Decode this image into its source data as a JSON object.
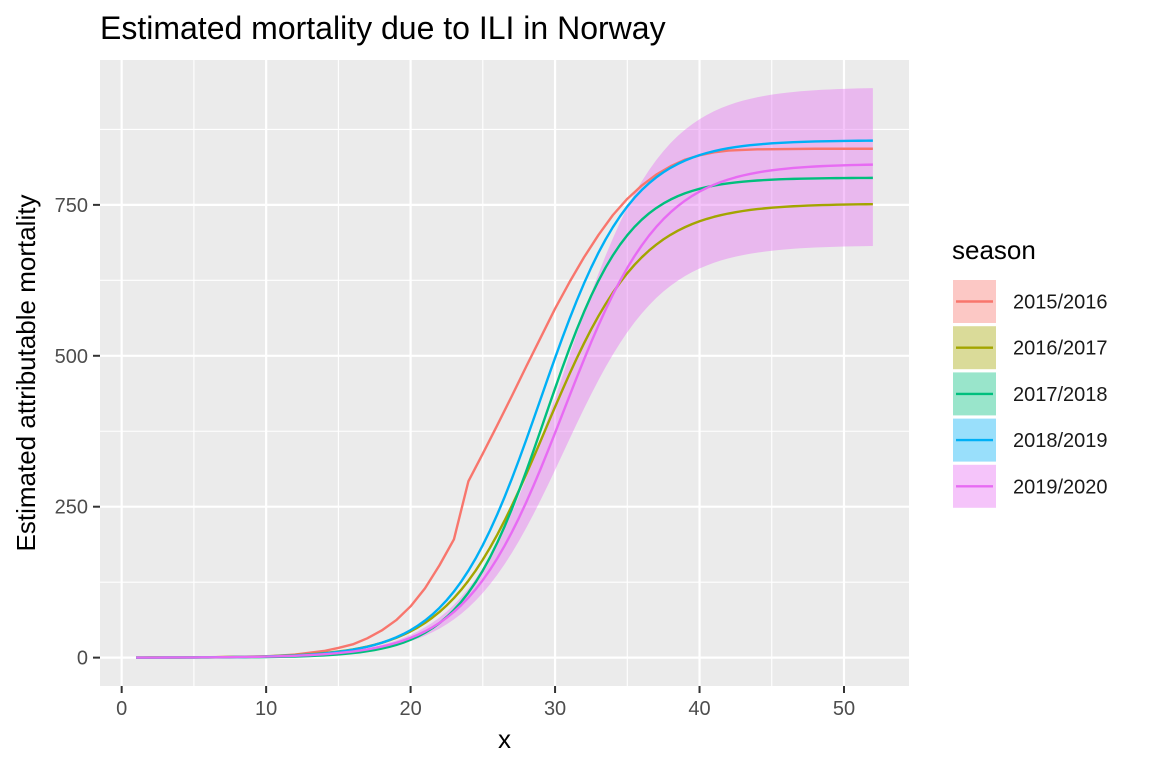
{
  "chart_data": {
    "type": "line",
    "title": "Estimated mortality due to ILI in Norway",
    "xlabel": "x",
    "ylabel": "Estimated attributable mortality",
    "xlim": [
      -1.5,
      54.5
    ],
    "ylim": [
      -47,
      990
    ],
    "x_ticks": [
      0,
      10,
      20,
      30,
      40,
      50
    ],
    "y_ticks": [
      0,
      250,
      500,
      750
    ],
    "grid": true,
    "legend": {
      "title": "season",
      "position": "right"
    },
    "series": [
      {
        "name": "2015/2016",
        "color": "#F8766D",
        "kind": "piecewise",
        "points": [
          [
            1,
            0
          ],
          [
            5,
            0.3
          ],
          [
            10,
            2
          ],
          [
            12,
            5
          ],
          [
            14,
            11
          ],
          [
            15,
            16
          ],
          [
            16,
            22
          ],
          [
            17,
            32
          ],
          [
            18,
            45
          ],
          [
            19,
            62
          ],
          [
            20,
            85
          ],
          [
            21,
            115
          ],
          [
            22,
            153
          ],
          [
            23,
            196
          ],
          [
            24,
            292
          ],
          [
            25,
            338
          ],
          [
            26,
            385
          ],
          [
            27,
            433
          ],
          [
            28,
            482
          ],
          [
            29,
            530
          ],
          [
            30,
            578
          ],
          [
            31,
            622
          ],
          [
            32,
            663
          ],
          [
            33,
            700
          ],
          [
            34,
            733
          ],
          [
            35,
            760
          ],
          [
            36,
            782
          ],
          [
            37,
            800
          ],
          [
            38,
            814
          ],
          [
            39,
            825
          ],
          [
            40,
            832
          ],
          [
            41,
            837
          ],
          [
            42,
            840
          ],
          [
            44,
            842
          ],
          [
            48,
            843
          ],
          [
            52,
            843
          ]
        ]
      },
      {
        "name": "2016/2017",
        "color": "#A3A500",
        "kind": "logistic",
        "L": 752,
        "x0": 29.3,
        "k": 0.3
      },
      {
        "name": "2017/2018",
        "color": "#00BF7D",
        "kind": "logistic",
        "L": 795,
        "x0": 29.3,
        "k": 0.35
      },
      {
        "name": "2018/2019",
        "color": "#00B0F6",
        "kind": "logistic",
        "L": 857,
        "x0": 29.0,
        "k": 0.32
      },
      {
        "name": "2019/2020",
        "color": "#E76BF3",
        "kind": "logistic",
        "L": 818,
        "x0": 30.6,
        "k": 0.3,
        "ribbon": {
          "upper": {
            "L": 945,
            "x0": 30.6,
            "k": 0.3
          },
          "lower": {
            "L": 683,
            "x0": 30.6,
            "k": 0.3
          }
        }
      }
    ],
    "x_range": [
      1,
      52
    ]
  }
}
